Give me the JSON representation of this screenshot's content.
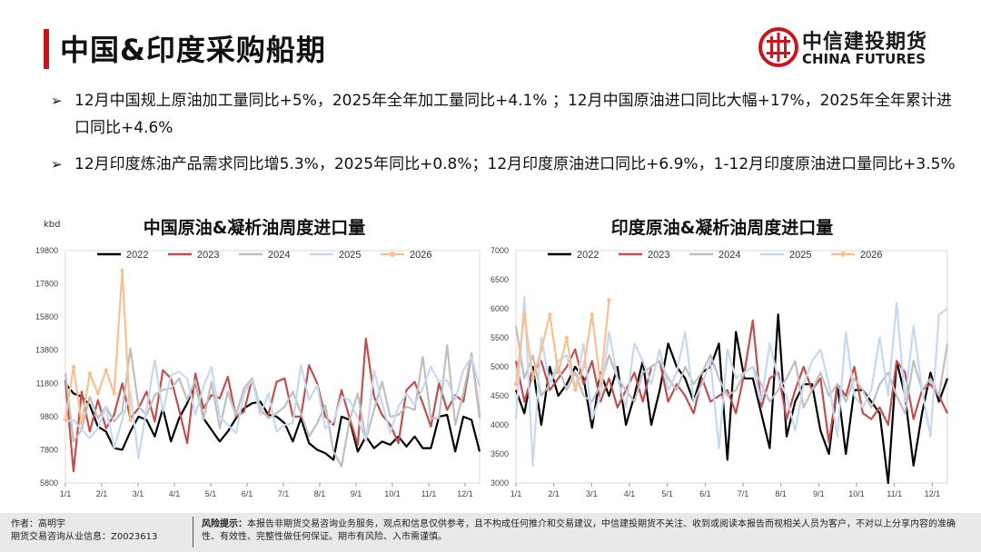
{
  "page": {
    "title": "中国&印度采购船期",
    "logo_cn": "中信建投期货",
    "logo_en": "CHINA FUTURES"
  },
  "bullets": [
    "12月中国规上原油加工量同比+5%，2025年全年加工量同比+4.1% ；12月中国原油进口同比大幅+17%，2025年全年累计进口同比+4.6%",
    "12月印度炼油产品需求同比增5.3%，2025年同比+0.8%；12月印度原油进口同比+6.9%，1-12月印度原油进口量同比+3.5%"
  ],
  "footer": {
    "author": "作者：高明宇",
    "license": "期货交易咨询从业信息：Z0023613",
    "risk_label": "风险提示：",
    "risk_text": "本报告非期货交易咨询业务服务，观点和信息仅供参考，且不构成任何推介和交易建议，中信建投期货不关注、收到或阅读本报告而视相关人员为客户，不对以上分享内容的准确性、有效性、完整性做任何保证。期市有风险、入市需谨慎。"
  },
  "colors": {
    "y2022": "#000000",
    "y2023": "#c0504d",
    "y2024": "#bfbfbf",
    "y2025": "#c6d9f1",
    "y2026": "#fac090"
  },
  "chart_data": [
    {
      "type": "line",
      "title": "中国原油&凝析油周度进口量",
      "unit_label": "kbd",
      "ylim": [
        5800,
        19800
      ],
      "yticks": [
        5800,
        7800,
        9800,
        11800,
        13800,
        15800,
        17800,
        19800
      ],
      "xticks": [
        "1/1",
        "2/1",
        "3/1",
        "4/1",
        "5/1",
        "6/1",
        "7/1",
        "8/1",
        "9/1",
        "10/1",
        "11/1",
        "12/1"
      ],
      "weeks": 52,
      "series": [
        {
          "name": "2022",
          "color": "#000000",
          "width": 2.2,
          "values": [
            11800,
            11200,
            11000,
            10500,
            9200,
            8900,
            7900,
            7800,
            8900,
            9800,
            9600,
            8600,
            10300,
            8300,
            9700,
            10600,
            11900,
            9700,
            9000,
            8300,
            8900,
            9700,
            10300,
            10600,
            10700,
            9900,
            9800,
            9400,
            8300,
            9700,
            8200,
            7800,
            7600,
            7200,
            9800,
            9600,
            7700,
            8600,
            7900,
            8300,
            8100,
            8600,
            8000,
            8600,
            7900,
            7900,
            9800,
            9900,
            7700,
            9800,
            9600,
            7700
          ]
        },
        {
          "name": "2023",
          "color": "#c0504d",
          "width": 2.2,
          "values": [
            12000,
            6500,
            11300,
            8900,
            10800,
            9100,
            9900,
            11800,
            9700,
            10300,
            11300,
            9500,
            12600,
            12100,
            10200,
            8200,
            12400,
            10300,
            11100,
            10900,
            12200,
            9800,
            10100,
            12100,
            10100,
            9900,
            11900,
            12100,
            9800,
            9800,
            12900,
            11800,
            9800,
            9300,
            11400,
            9700,
            8100,
            14500,
            11000,
            9900,
            9300,
            8200,
            11400,
            11900,
            10600,
            9200,
            11800,
            10200,
            11100,
            10700,
            13600,
            9800
          ]
        },
        {
          "name": "2024",
          "color": "#bfbfbf",
          "width": 2.2,
          "values": [
            12400,
            8300,
            9000,
            11000,
            9700,
            10400,
            9500,
            10100,
            13900,
            10400,
            9900,
            11100,
            11400,
            11500,
            12100,
            10800,
            12000,
            9600,
            11900,
            9100,
            11300,
            9900,
            11500,
            12100,
            10300,
            9700,
            10000,
            10400,
            11300,
            10000,
            8600,
            9400,
            10500,
            7700,
            6800,
            9600,
            11200,
            8400,
            10200,
            11900,
            9800,
            9900,
            10400,
            10200,
            13400,
            9700,
            9700,
            14100,
            9300,
            11200,
            13600,
            9700
          ]
        },
        {
          "name": "2025",
          "color": "#c6d9f1",
          "width": 2.2,
          "values": [
            9500,
            9600,
            9000,
            8500,
            9100,
            10400,
            7900,
            9600,
            11300,
            7300,
            10300,
            13200,
            10100,
            12300,
            12500,
            12100,
            9900,
            11600,
            12800,
            9800,
            9300,
            8800,
            11200,
            12000,
            9900,
            11200,
            8900,
            9300,
            9400,
            12900,
            10800,
            11700,
            9100,
            9500,
            11000,
            10800,
            9700,
            8300,
            12600,
            10600,
            8800,
            10400,
            11200,
            10500,
            11500,
            12800,
            11900,
            12000,
            10800,
            12600,
            13400,
            11600
          ]
        },
        {
          "name": "2026",
          "color": "#fac090",
          "width": 2.2,
          "marker": true,
          "values": [
            9600,
            12800,
            9400,
            12400,
            11200,
            12600,
            11200,
            18600,
            9600
          ]
        }
      ]
    },
    {
      "type": "line",
      "title": "印度原油&凝析油周度进口量",
      "ylim": [
        3000,
        7000
      ],
      "yticks": [
        3000,
        3500,
        4000,
        4500,
        5000,
        5500,
        6000,
        6500,
        7000
      ],
      "xticks": [
        "1/1",
        "2/1",
        "3/1",
        "4/1",
        "5/1",
        "6/1",
        "7/1",
        "8/1",
        "9/1",
        "10/1",
        "11/1",
        "12/1"
      ],
      "weeks": 52,
      "series": [
        {
          "name": "2022",
          "color": "#000000",
          "width": 2.2,
          "values": [
            4600,
            4200,
            5000,
            4000,
            5000,
            4500,
            4700,
            5000,
            4800,
            3950,
            4900,
            4500,
            5000,
            4000,
            4500,
            5100,
            4000,
            4600,
            5400,
            5000,
            4800,
            4400,
            4900,
            5000,
            5400,
            3400,
            5600,
            4800,
            4800,
            4200,
            3600,
            5900,
            3800,
            4400,
            4700,
            4700,
            3900,
            3500,
            4700,
            3500,
            4600,
            4600,
            4400,
            4200,
            3000,
            5100,
            4500,
            3300,
            4200,
            4900,
            4400,
            4800
          ]
        },
        {
          "name": "2023",
          "color": "#c0504d",
          "width": 2.2,
          "values": [
            5100,
            4400,
            4900,
            5100,
            4600,
            4800,
            5000,
            5300,
            4700,
            5100,
            4400,
            4800,
            4300,
            4600,
            4900,
            4400,
            5000,
            5100,
            4400,
            4700,
            4500,
            4200,
            4800,
            4400,
            4500,
            4600,
            4200,
            4900,
            5800,
            4300,
            4800,
            4900,
            4100,
            4600,
            5000,
            4600,
            4800,
            3700,
            4700,
            4500,
            5000,
            4200,
            4100,
            4300,
            4000,
            5100,
            4900,
            4100,
            4600,
            4700,
            4500,
            4200
          ]
        },
        {
          "name": "2024",
          "color": "#bfbfbf",
          "width": 2.2,
          "values": [
            5700,
            4800,
            5200,
            4500,
            4700,
            5000,
            4600,
            4900,
            4500,
            4400,
            4700,
            5200,
            4800,
            4600,
            4400,
            4900,
            5000,
            5100,
            4800,
            4600,
            5000,
            4700,
            4900,
            5200,
            4800,
            4500,
            4600,
            4900,
            5000,
            4700,
            4400,
            4600,
            4800,
            5100,
            4300,
            4600,
            4900,
            4500,
            4700,
            4400,
            4800,
            4600,
            4300,
            4700,
            4900,
            4500,
            4200,
            5100,
            4600,
            4800,
            4500,
            5400
          ]
        },
        {
          "name": "2025",
          "color": "#c6d9f1",
          "width": 2.2,
          "values": [
            4100,
            6200,
            3300,
            5500,
            4700,
            5100,
            5200,
            4600,
            5400,
            4100,
            4500,
            5600,
            4800,
            4300,
            5400,
            5100,
            4700,
            5300,
            4600,
            4900,
            5600,
            4400,
            4700,
            5100,
            3600,
            5300,
            4800,
            4900,
            5000,
            4400,
            5400,
            4800,
            4500,
            3900,
            4700,
            5100,
            5300,
            4700,
            3800,
            5600,
            4500,
            4300,
            4600,
            5500,
            4500,
            6100,
            4400,
            5700,
            4600,
            3800,
            5900,
            6000
          ]
        },
        {
          "name": "2026",
          "color": "#fac090",
          "width": 2.2,
          "marker": true,
          "values": [
            4700,
            5900,
            4800,
            5300,
            5900,
            4900,
            5500,
            4600,
            5000,
            5900,
            4700,
            6150
          ]
        }
      ]
    }
  ]
}
